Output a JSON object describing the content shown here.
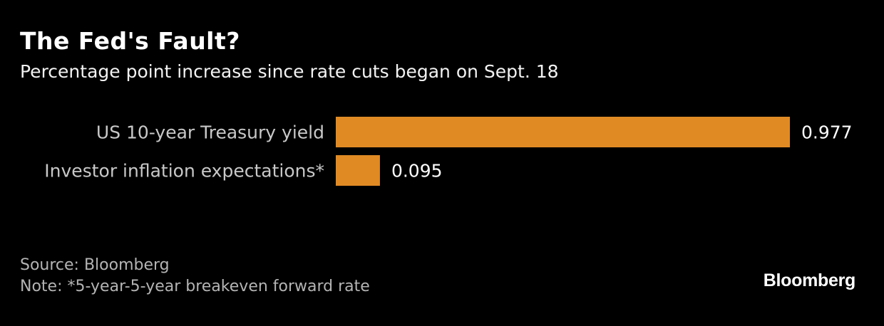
{
  "header": {
    "title": "The Fed's Fault?",
    "subtitle": "Percentage point increase since rate cuts began on Sept. 18"
  },
  "chart_data": {
    "type": "bar",
    "orientation": "horizontal",
    "title": "The Fed's Fault?",
    "subtitle": "Percentage point increase since rate cuts began on Sept. 18",
    "categories": [
      "US 10-year Treasury yield",
      "Investor inflation expectations*"
    ],
    "values": [
      0.977,
      0.095
    ],
    "value_labels": [
      "0.977",
      "0.095"
    ],
    "xlim": [
      0,
      1.0
    ],
    "xlabel": "",
    "ylabel": "",
    "grid": false,
    "bar_color": "#e08a24"
  },
  "footer": {
    "source": "Source: Bloomberg",
    "note": "Note: *5-year-5-year breakeven forward rate"
  },
  "branding": {
    "logo_text": "Bloomberg"
  }
}
